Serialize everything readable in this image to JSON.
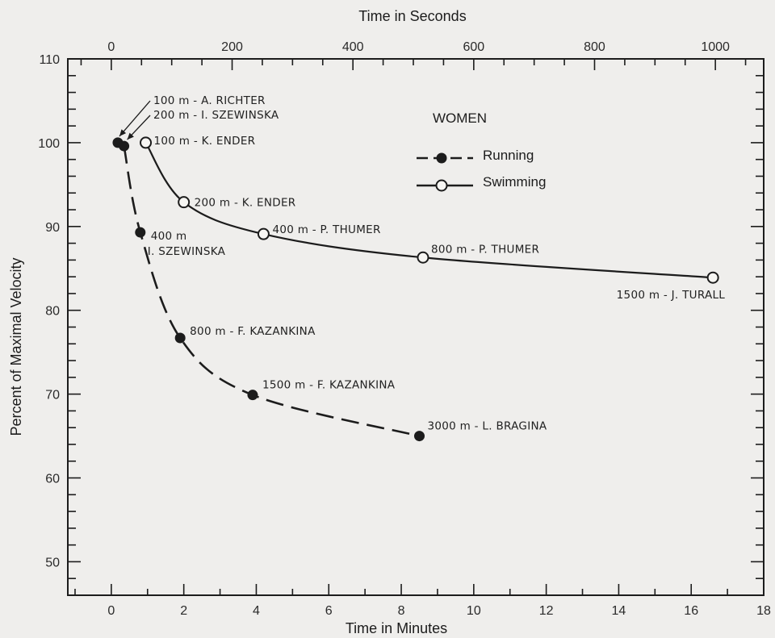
{
  "chart_data": {
    "type": "line",
    "xlabel": "Time in Minutes",
    "x2label": "Time in Seconds",
    "ylabel": "Percent of Maximal Velocity",
    "xlim": [
      -1.2,
      18
    ],
    "x2lim": [
      -72,
      1080
    ],
    "ylim": [
      46,
      110
    ],
    "x_ticks": [
      0,
      2,
      4,
      6,
      8,
      10,
      12,
      14,
      16,
      18
    ],
    "x2_ticks": [
      0,
      200,
      400,
      600,
      800,
      1000
    ],
    "y_ticks": [
      50,
      60,
      70,
      80,
      90,
      100,
      110
    ],
    "legend_title": "WOMEN",
    "legend_position": "top-right",
    "grid": false,
    "series": [
      {
        "name": "Running",
        "line_style": "dashed",
        "marker": "filled",
        "points": [
          {
            "x": 0.18,
            "y": 100,
            "label": "100 m - A. RICHTER"
          },
          {
            "x": 0.35,
            "y": 99.6,
            "label": "200 m - I. SZEWINSKA"
          },
          {
            "x": 0.8,
            "y": 89.3,
            "label": "400 m",
            "label2": "I. SZEWINSKA"
          },
          {
            "x": 1.9,
            "y": 76.7,
            "label": "800 m - F. KAZANKINA"
          },
          {
            "x": 3.9,
            "y": 69.9,
            "label": "1500 m - F. KAZANKINA"
          },
          {
            "x": 8.5,
            "y": 65.0,
            "label": "3000 m - L. BRAGINA"
          }
        ]
      },
      {
        "name": "Swimming",
        "line_style": "solid",
        "marker": "open",
        "points": [
          {
            "x": 0.95,
            "y": 100,
            "label": "100 m - K. ENDER"
          },
          {
            "x": 2.0,
            "y": 92.9,
            "label": "200 m - K. ENDER"
          },
          {
            "x": 4.2,
            "y": 89.1,
            "label": "400 m - P. THUMER"
          },
          {
            "x": 8.6,
            "y": 86.3,
            "label": "800 m - P. THUMER"
          },
          {
            "x": 16.6,
            "y": 83.9,
            "label": "1500 m - J. TURALL"
          }
        ]
      }
    ]
  }
}
